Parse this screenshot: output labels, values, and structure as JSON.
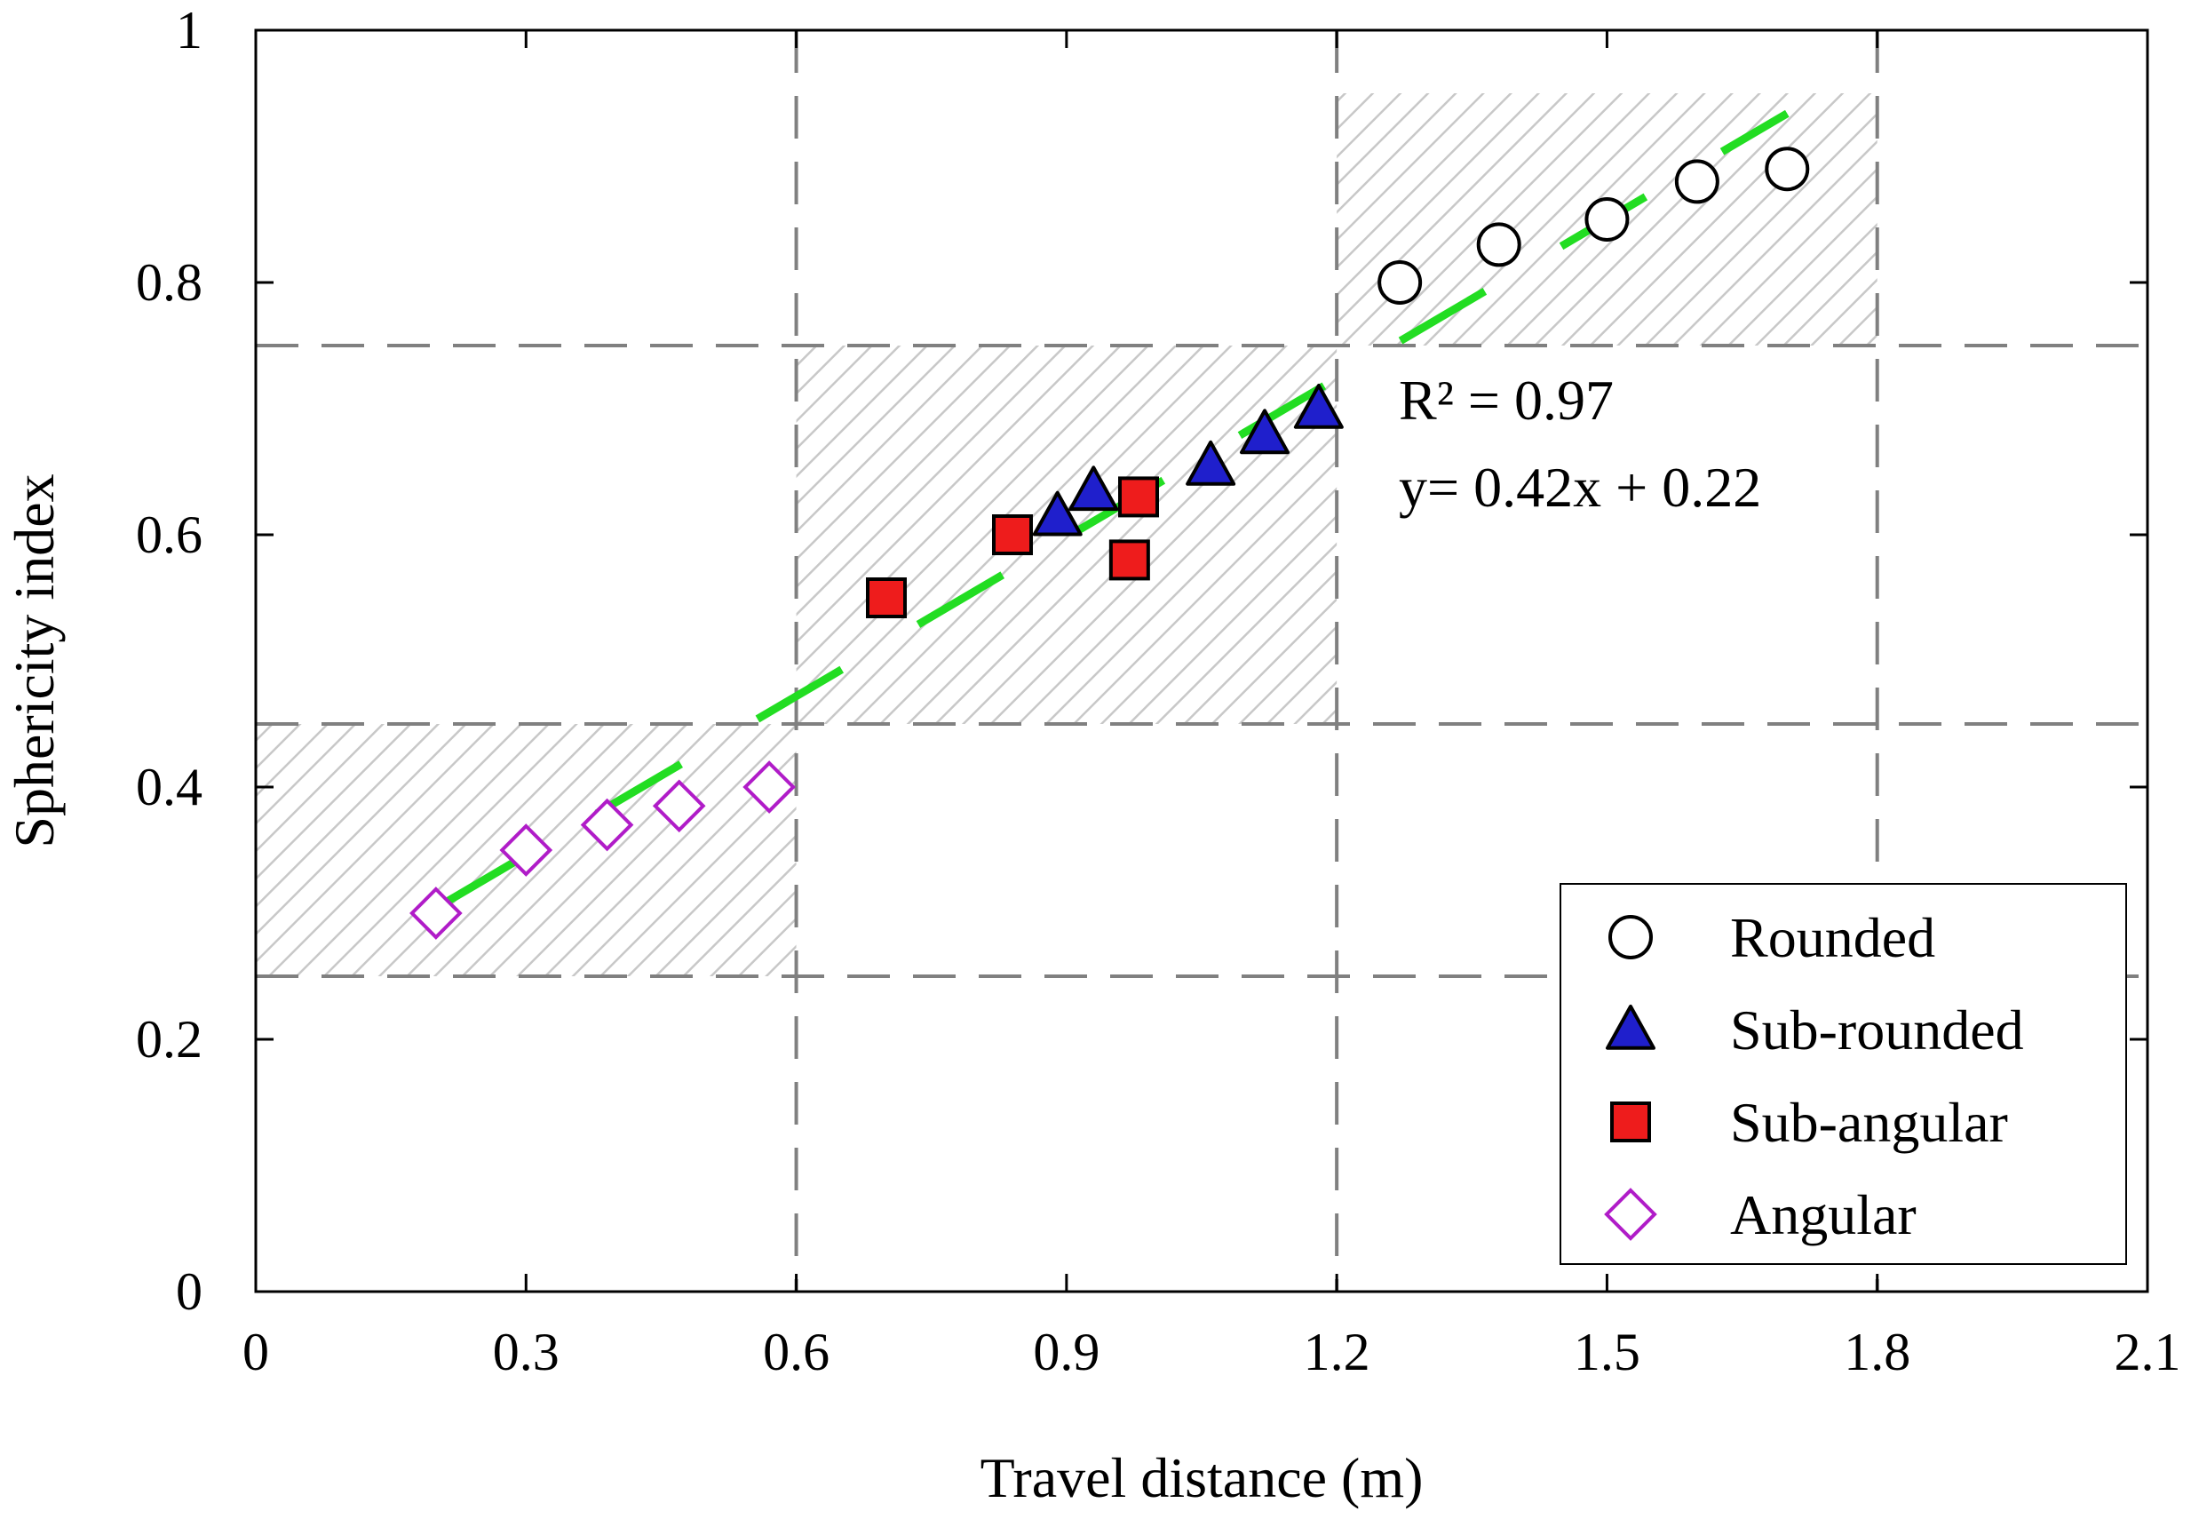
{
  "chart_data": {
    "type": "scatter",
    "xlabel": "Travel distance (m)",
    "ylabel": "Sphericity index",
    "xlim": [
      0,
      2.1
    ],
    "ylim": [
      0,
      1
    ],
    "x_ticks": [
      "0",
      "0.3",
      "0.6",
      "0.9",
      "1.2",
      "1.5",
      "1.8",
      "2.1"
    ],
    "y_ticks": [
      "0",
      "0.2",
      "0.4",
      "0.6",
      "0.8",
      "1"
    ],
    "x_tick_values": [
      0,
      0.3,
      0.6,
      0.9,
      1.2,
      1.5,
      1.8,
      2.1
    ],
    "y_tick_values": [
      0,
      0.2,
      0.4,
      0.6,
      0.8,
      1.0
    ],
    "reference_lines": {
      "vertical": [
        0.6,
        1.2,
        1.8
      ],
      "horizontal": [
        0.25,
        0.45,
        0.75
      ]
    },
    "shaded_regions": [
      {
        "x": [
          0,
          0.6
        ],
        "y": [
          0.25,
          0.45
        ]
      },
      {
        "x": [
          0.6,
          1.2
        ],
        "y": [
          0.45,
          0.75
        ]
      },
      {
        "x": [
          1.2,
          1.8
        ],
        "y": [
          0.75,
          0.95
        ]
      }
    ],
    "series": [
      {
        "name": "Rounded",
        "marker": "circle",
        "color": "#ffffff",
        "stroke": "#000000",
        "points": [
          [
            1.27,
            0.8
          ],
          [
            1.38,
            0.83
          ],
          [
            1.5,
            0.85
          ],
          [
            1.6,
            0.88
          ],
          [
            1.7,
            0.89
          ]
        ]
      },
      {
        "name": "Sub-rounded",
        "marker": "triangle",
        "color": "#1f1fcc",
        "stroke": "#000000",
        "points": [
          [
            0.89,
            0.615
          ],
          [
            0.93,
            0.635
          ],
          [
            1.06,
            0.655
          ],
          [
            1.12,
            0.68
          ],
          [
            1.18,
            0.7
          ]
        ]
      },
      {
        "name": "Sub-angular",
        "marker": "square",
        "color": "#ee1c1c",
        "stroke": "#000000",
        "points": [
          [
            0.7,
            0.55
          ],
          [
            0.84,
            0.6
          ],
          [
            0.97,
            0.58
          ],
          [
            0.98,
            0.63
          ]
        ]
      },
      {
        "name": "Angular",
        "marker": "diamond",
        "color": "#ffffff",
        "stroke": "#b01cc8",
        "points": [
          [
            0.2,
            0.3
          ],
          [
            0.3,
            0.35
          ],
          [
            0.39,
            0.37
          ],
          [
            0.47,
            0.385
          ],
          [
            0.57,
            0.4
          ]
        ]
      }
    ],
    "fit": {
      "slope": 0.42,
      "intercept": 0.22,
      "x_range": [
        0.2,
        1.7
      ],
      "color": "#22dd22",
      "style": "dashed"
    },
    "annotations": [
      "R² = 0.97",
      "y= 0.42x + 0.22"
    ],
    "legend_position": "bottom-right",
    "grid": false
  }
}
